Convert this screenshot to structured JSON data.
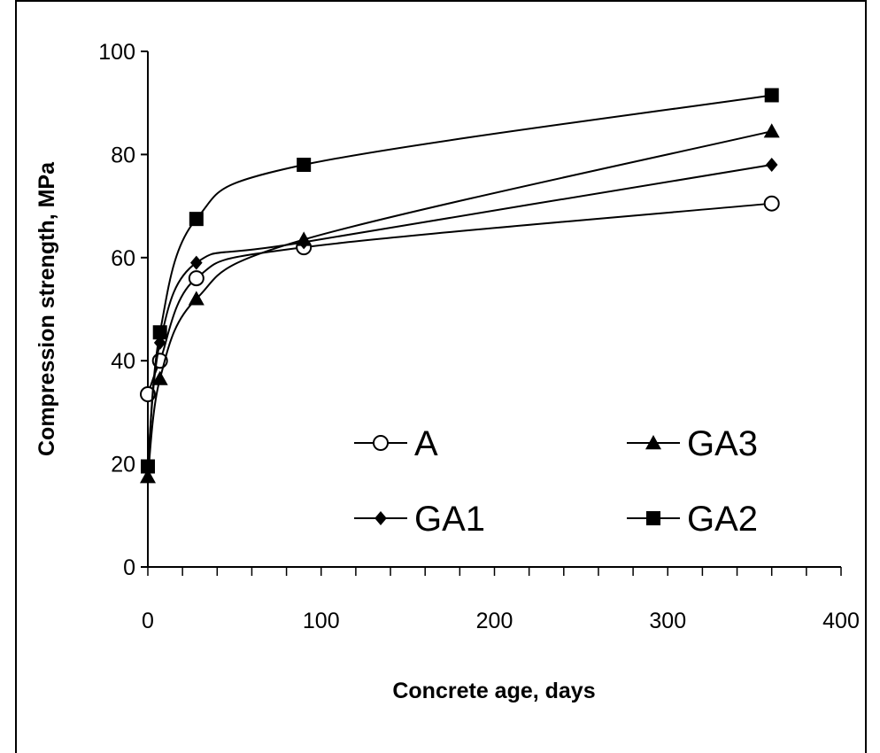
{
  "chart_data": {
    "type": "line",
    "xlabel": "Concrete age, days",
    "ylabel": "Compression strength, MPa",
    "xlim": [
      0,
      400
    ],
    "ylim": [
      0,
      100
    ],
    "xticks": [
      0,
      100,
      200,
      300,
      400
    ],
    "yticks": [
      0,
      20,
      40,
      60,
      80,
      100
    ],
    "grid": false,
    "legend_position": "lower-right",
    "series": [
      {
        "name": "A",
        "marker": "circle-open",
        "color": "#000000",
        "x": [
          0,
          7,
          28,
          90,
          360
        ],
        "y": [
          33.5,
          40,
          56,
          62,
          70.5
        ]
      },
      {
        "name": "GA3",
        "marker": "triangle",
        "color": "#000000",
        "x": [
          0,
          7,
          28,
          90,
          360
        ],
        "y": [
          17.5,
          36.5,
          52,
          63.5,
          84.5
        ]
      },
      {
        "name": "GA1",
        "marker": "diamond",
        "color": "#000000",
        "x": [
          0,
          7,
          28,
          90,
          360
        ],
        "y": [
          19.5,
          43.5,
          59,
          63,
          78
        ]
      },
      {
        "name": "GA2",
        "marker": "square",
        "color": "#000000",
        "x": [
          0,
          7,
          28,
          90,
          360
        ],
        "y": [
          19.5,
          45.5,
          67.5,
          78,
          91.5
        ]
      }
    ]
  }
}
